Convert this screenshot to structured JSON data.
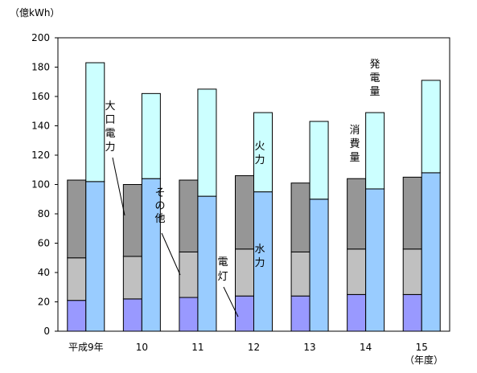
{
  "chart_data": {
    "type": "bar",
    "stacked": true,
    "unit_label": "（億kWh）",
    "x_unit_label": "（年度）",
    "ylim": [
      0,
      200
    ],
    "yticks": [
      0,
      20,
      40,
      60,
      80,
      100,
      120,
      140,
      160,
      180,
      200
    ],
    "categories": [
      "平成9年",
      "10",
      "11",
      "12",
      "13",
      "14",
      "15"
    ],
    "consumption": {
      "label": "消費量",
      "series": [
        {
          "label": "電灯",
          "color": "#9999ff",
          "values": [
            21,
            22,
            23,
            24,
            24,
            25,
            25
          ]
        },
        {
          "label": "その他",
          "color": "#c0c0c0",
          "values": [
            29,
            29,
            31,
            32,
            30,
            31,
            31
          ]
        },
        {
          "label": "大口電力",
          "color": "#969696",
          "values": [
            53,
            49,
            49,
            50,
            47,
            48,
            49
          ]
        }
      ]
    },
    "generation": {
      "label": "発電量",
      "series": [
        {
          "label": "水力",
          "color": "#99ccff",
          "values": [
            102,
            104,
            92,
            95,
            90,
            97,
            108
          ]
        },
        {
          "label": "火力",
          "color": "#ccffff",
          "values": [
            81,
            58,
            73,
            54,
            53,
            52,
            63
          ]
        }
      ]
    }
  }
}
